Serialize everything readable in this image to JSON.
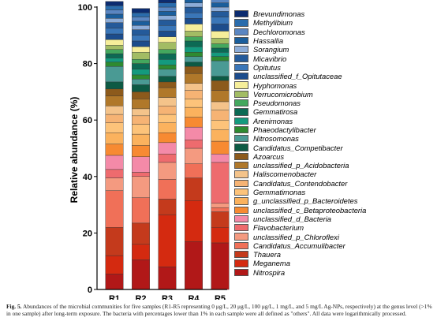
{
  "chart_data": {
    "type": "stacked-bar",
    "ylabel": "Relative abundance (%)",
    "ylim": [
      0,
      100
    ],
    "yticks": [
      "0",
      "20",
      "40",
      "60",
      "80",
      "100"
    ],
    "categories": [
      "R1",
      "R2",
      "R3",
      "R4",
      "R5"
    ],
    "series": [
      {
        "name": "Nitrospira",
        "color": "#b11818",
        "values": [
          5.5,
          10.5,
          8,
          17,
          16.5
        ]
      },
      {
        "name": "Meganema",
        "color": "#d42a10",
        "values": [
          6.5,
          5.5,
          18.5,
          14.5,
          5.5
        ]
      },
      {
        "name": "Thauera",
        "color": "#c43a1c",
        "values": [
          10,
          7.5,
          5.5,
          8,
          5.5
        ]
      },
      {
        "name": "Candidatus_Accumulibacter",
        "color": "#f07058",
        "values": [
          13,
          9,
          7,
          5,
          1.5
        ]
      },
      {
        "name": "unclassified_p_Chloroflexi",
        "color": "#f49a80",
        "values": [
          4.5,
          7.5,
          6,
          5.5,
          1.5
        ]
      },
      {
        "name": "Flavobacterium",
        "color": "#ee6b6e",
        "values": [
          3,
          1.5,
          3,
          3,
          14.5
        ]
      },
      {
        "name": "unclassified_d_Bacteria",
        "color": "#f48aa8",
        "values": [
          5,
          5.5,
          4,
          4.5,
          3
        ]
      },
      {
        "name": "unclassified_c_Betaproteobacteria",
        "color": "#f78a32",
        "values": [
          4,
          4,
          3.5,
          3.5,
          4.5
        ]
      },
      {
        "name": "g_unclassified_p_Bacteroidetes",
        "color": "#fbb25e",
        "values": [
          4,
          4,
          3.5,
          3.5,
          4
        ]
      },
      {
        "name": "Gemmatimonas",
        "color": "#fdc37a",
        "values": [
          3.5,
          3.5,
          3,
          3,
          3.5
        ]
      },
      {
        "name": "Candidatus_Contendobacter",
        "color": "#f6b374",
        "values": [
          3,
          3,
          3,
          3,
          3.5
        ]
      },
      {
        "name": "Haliscomenobacter",
        "color": "#f4c38a",
        "values": [
          3,
          2.5,
          3,
          2.5,
          3
        ]
      },
      {
        "name": "unclassified_p_Acidobacteria",
        "color": "#b0782a",
        "values": [
          3.5,
          3.5,
          3.5,
          3.5,
          4
        ]
      },
      {
        "name": "Azoarcus",
        "color": "#8c5a1c",
        "values": [
          2.5,
          2.5,
          2,
          2.5,
          3.5
        ]
      },
      {
        "name": "Candidatus_Competibacter",
        "color": "#0d5a44",
        "values": [
          2.5,
          2.5,
          2,
          1.5,
          1.5
        ]
      },
      {
        "name": "Nitrosomonas",
        "color": "#4a9a94",
        "values": [
          5.5,
          2,
          2.5,
          2,
          5.5
        ]
      },
      {
        "name": "Phaeodactylibacter",
        "color": "#2e8a30",
        "values": [
          1.5,
          1.5,
          1.5,
          1.5,
          1.5
        ]
      },
      {
        "name": "Arenimonas",
        "color": "#149a7e",
        "values": [
          1.5,
          2,
          2,
          2,
          1.5
        ]
      },
      {
        "name": "Gemmatirosa",
        "color": "#0c6a54",
        "values": [
          1.5,
          2,
          2,
          2,
          1.5
        ]
      },
      {
        "name": "Pseudomonas",
        "color": "#44a85e",
        "values": [
          1.5,
          1.5,
          1.5,
          1.5,
          1.5
        ]
      },
      {
        "name": "Verrucomicrobium",
        "color": "#a2bc64",
        "values": [
          1.5,
          2.5,
          2.5,
          2,
          2
        ]
      },
      {
        "name": "Hyphomonas",
        "color": "#f6ee9a",
        "values": [
          2,
          2,
          2,
          2.5,
          2.5
        ]
      },
      {
        "name": "unclassified_f_Opitutaceae",
        "color": "#1c4c8c",
        "values": [
          2,
          2,
          2,
          2,
          2.5
        ]
      },
      {
        "name": "Opitutus",
        "color": "#3a76b8",
        "values": [
          2,
          2,
          2,
          2,
          2.5
        ]
      },
      {
        "name": "Micavibrio",
        "color": "#245a9a",
        "values": [
          2,
          2,
          2,
          2,
          2
        ]
      },
      {
        "name": "Sorangium",
        "color": "#8cacd8",
        "values": [
          1.5,
          1.5,
          1.5,
          1.5,
          1.5
        ]
      },
      {
        "name": "Hassallia",
        "color": "#1a5e9c",
        "values": [
          1.5,
          1.5,
          1.5,
          1.5,
          1.5
        ]
      },
      {
        "name": "Dechloromonas",
        "color": "#5a86c2",
        "values": [
          1.5,
          1.5,
          1.5,
          1.5,
          1.5
        ]
      },
      {
        "name": "Methylibium",
        "color": "#2a6cac",
        "values": [
          1.5,
          1.5,
          1.5,
          1.5,
          1.5
        ]
      },
      {
        "name": "Brevundimonas",
        "color": "#0c2c70",
        "values": [
          1.5,
          1.5,
          1.5,
          1.5,
          1.5
        ]
      }
    ]
  },
  "caption": {
    "label": "Fig. 5.",
    "text": "Abundances of the microbial communities for five samples (R1-R5 representing 0 μg/L, 20 μg/L, 100 μg/L, 1 mg/L, and 5 mg/L Ag-NPs, respectively) at the genus level (>1% in one sample) after long-term exposure. The bacteria with percentages lower than 1% in each sample were all defined as \"others\". All data were logarithmically processed."
  }
}
